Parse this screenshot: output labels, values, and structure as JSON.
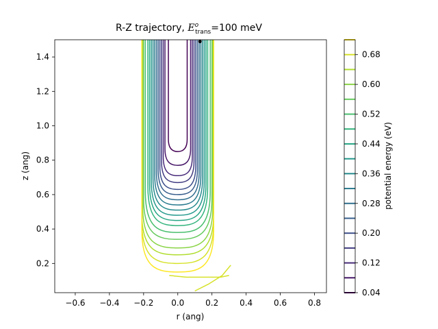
{
  "chart_data": {
    "type": "contour",
    "title_prefix": "R-Z trajectory, ",
    "title_symbol": "E",
    "title_sup": "o",
    "title_sub": "trans",
    "title_suffix": "=100 meV",
    "xlabel": "r (ang)",
    "ylabel": "z (ang)",
    "xlim": [
      -0.72,
      0.87
    ],
    "ylim": [
      0.03,
      1.5
    ],
    "xticks": [
      "−0.6",
      "−0.4",
      "−0.2",
      "0.0",
      "0.2",
      "0.4",
      "0.6",
      "0.8"
    ],
    "xtick_values": [
      -0.6,
      -0.4,
      -0.2,
      0.0,
      0.2,
      0.4,
      0.6,
      0.8
    ],
    "yticks": [
      "0.2",
      "0.4",
      "0.6",
      "0.8",
      "1.0",
      "1.2",
      "1.4"
    ],
    "ytick_values": [
      0.2,
      0.4,
      0.6,
      0.8,
      1.0,
      1.2,
      1.4
    ],
    "colorbar": {
      "label": "potential energy (eV)",
      "range": [
        0.04,
        0.72
      ],
      "levels": [
        0.04,
        0.08,
        0.12,
        0.16,
        0.2,
        0.24,
        0.28,
        0.32,
        0.36,
        0.4,
        0.44,
        0.48,
        0.52,
        0.56,
        0.6,
        0.64,
        0.68,
        0.72
      ],
      "tick_values": [
        0.04,
        0.12,
        0.2,
        0.28,
        0.36,
        0.44,
        0.52,
        0.6,
        0.68
      ],
      "ticks": [
        "0.04",
        "0.12",
        "0.20",
        "0.28",
        "0.36",
        "0.44",
        "0.52",
        "0.60",
        "0.68"
      ],
      "colormap": "viridis"
    },
    "contour_levels": [
      {
        "level": 0.04,
        "half_width": 0.055,
        "bottom_z": 0.85
      },
      {
        "level": 0.08,
        "half_width": 0.075,
        "bottom_z": 0.77
      },
      {
        "level": 0.12,
        "half_width": 0.085,
        "bottom_z": 0.71
      },
      {
        "level": 0.16,
        "half_width": 0.095,
        "bottom_z": 0.67
      },
      {
        "level": 0.2,
        "half_width": 0.105,
        "bottom_z": 0.63
      },
      {
        "level": 0.24,
        "half_width": 0.115,
        "bottom_z": 0.6
      },
      {
        "level": 0.28,
        "half_width": 0.125,
        "bottom_z": 0.57
      },
      {
        "level": 0.32,
        "half_width": 0.135,
        "bottom_z": 0.54
      },
      {
        "level": 0.36,
        "half_width": 0.145,
        "bottom_z": 0.51
      },
      {
        "level": 0.4,
        "half_width": 0.155,
        "bottom_z": 0.48
      },
      {
        "level": 0.44,
        "half_width": 0.165,
        "bottom_z": 0.45
      },
      {
        "level": 0.48,
        "half_width": 0.175,
        "bottom_z": 0.42
      },
      {
        "level": 0.52,
        "half_width": 0.19,
        "bottom_z": 0.38
      },
      {
        "level": 0.56,
        "half_width": 0.2,
        "bottom_z": 0.34
      },
      {
        "level": 0.6,
        "half_width": 0.205,
        "bottom_z": 0.29
      },
      {
        "level": 0.64,
        "half_width": 0.21,
        "bottom_z": 0.25
      },
      {
        "level": 0.68,
        "half_width": 0.21,
        "bottom_z": 0.2
      },
      {
        "level": 0.72,
        "half_width": 0.21,
        "bottom_z": 0.15
      }
    ],
    "trajectory": {
      "r": [
        0.13,
        0.13
      ],
      "z": [
        1.49,
        1.5
      ]
    },
    "low_curves": [
      {
        "level": 0.68,
        "r": [
          -0.05,
          0.05,
          0.15,
          0.25,
          0.3
        ],
        "z": [
          0.13,
          0.12,
          0.12,
          0.12,
          0.13
        ]
      },
      {
        "level": 0.68,
        "r": [
          0.1,
          0.18,
          0.26,
          0.31
        ],
        "z": [
          0.04,
          0.08,
          0.13,
          0.19
        ]
      }
    ],
    "grid": false
  }
}
